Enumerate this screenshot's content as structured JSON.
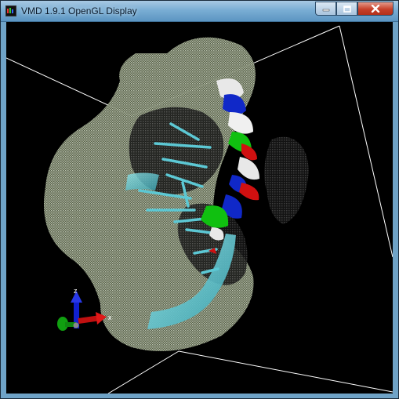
{
  "window": {
    "title": "VMD 1.9.1 OpenGL Display",
    "app_icon": "vmd-app-icon",
    "buttons": {
      "minimize": "minimize-icon",
      "maximize": "maximize-icon",
      "close": "close-icon"
    }
  },
  "viewport": {
    "background": "#000000",
    "axes": {
      "x_label": "x",
      "z_label": "z",
      "colors": {
        "x": "#d01010",
        "y": "#10a010",
        "z": "#1020d0"
      }
    },
    "colors": {
      "surface": "#b8c2a8",
      "helix_white": "#e8e8e8",
      "helix_blue": "#1028c8",
      "helix_green": "#10c010",
      "helix_red": "#d01010",
      "nucleic_cyan": "#5cc8d4",
      "bounding_box": "#ffffff"
    }
  }
}
